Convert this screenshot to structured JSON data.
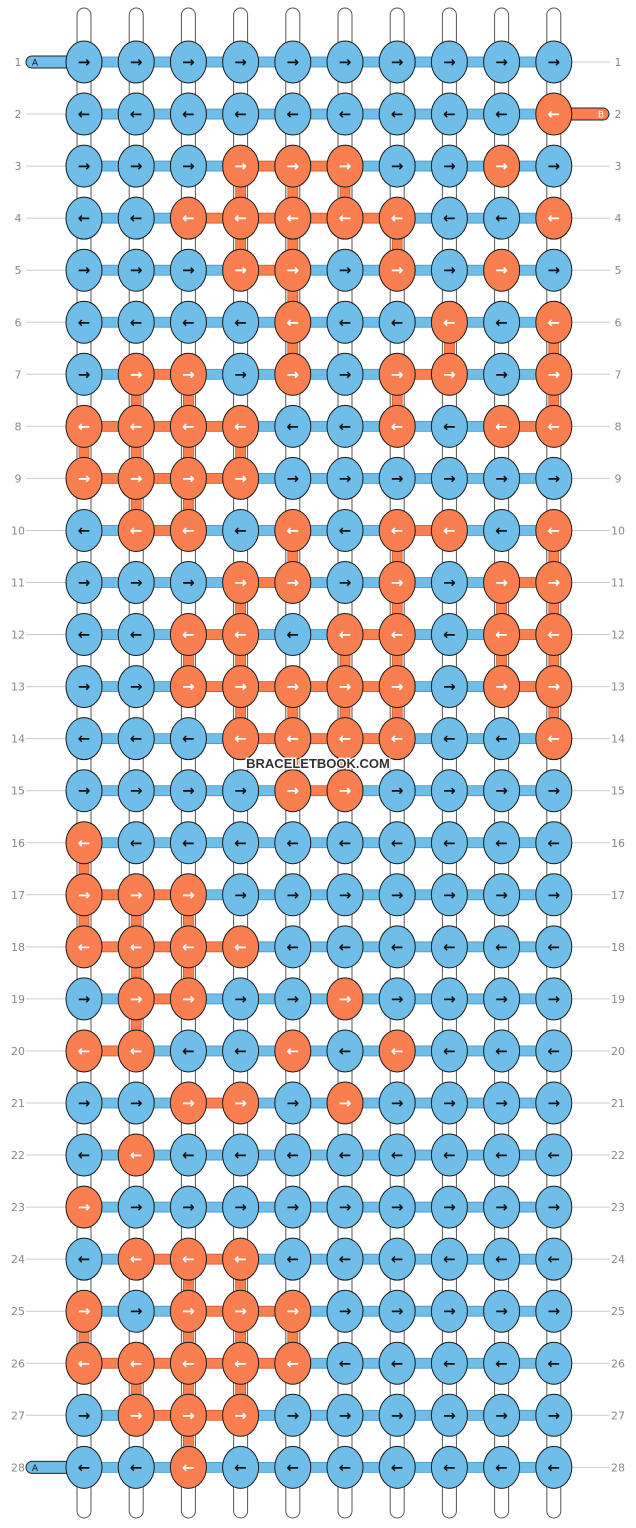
{
  "pattern": {
    "watermark": "BRACELETBOOK.COM",
    "colors": {
      "A": "#6fbde9",
      "B": "#f97f51"
    },
    "colors_names": {
      "A": "A",
      "B": "B"
    },
    "arrow_glyphs": {
      "R": "→",
      "L": "←"
    },
    "rows": [
      {
        "label": "1",
        "dir": "RRRRRRRRRR",
        "col": "AAAAAAAAAA"
      },
      {
        "label": "2",
        "dir": "LLLLLLLLLL",
        "col": "AAAAAAAAAB"
      },
      {
        "label": "3",
        "dir": "RRRRRRRRRR",
        "col": "AAABBBAABA"
      },
      {
        "label": "4",
        "dir": "LLLLLLLLLL",
        "col": "AABBBBBAAB"
      },
      {
        "label": "5",
        "dir": "RRRRRRRRRR",
        "col": "AAABBABABA"
      },
      {
        "label": "6",
        "dir": "LLLLLLLLLL",
        "col": "AAAABAABAB"
      },
      {
        "label": "7",
        "dir": "RRRRRRRRRR",
        "col": "ABBABABBAB"
      },
      {
        "label": "8",
        "dir": "LLLLLLLLLL",
        "col": "BBBBAABABB"
      },
      {
        "label": "9",
        "dir": "RRRRRRRRRR",
        "col": "BBBBAAAAAA"
      },
      {
        "label": "10",
        "dir": "LLLLLLLLLL",
        "col": "ABBABABBAB"
      },
      {
        "label": "11",
        "dir": "RRRRRRRRRR",
        "col": "AAABBABABB"
      },
      {
        "label": "12",
        "dir": "LLLLLLLLLL",
        "col": "AABBABBABB"
      },
      {
        "label": "13",
        "dir": "RRRRRRRRRR",
        "col": "AABBBBBABB"
      },
      {
        "label": "14",
        "dir": "LLLLLLLLLL",
        "col": "AAABBBBAAB"
      },
      {
        "label": "15",
        "dir": "RRRRRRRRRR",
        "col": "AAAABBAAAA"
      },
      {
        "label": "16",
        "dir": "LLLLLLLLLL",
        "col": "BAAAAAAAAA"
      },
      {
        "label": "17",
        "dir": "RRRRRRRRRR",
        "col": "BBBAAAAAAA"
      },
      {
        "label": "18",
        "dir": "LLLLLLLLLL",
        "col": "BBBBAAAAAA"
      },
      {
        "label": "19",
        "dir": "RRRRRRRRRR",
        "col": "ABBAABAAAA"
      },
      {
        "label": "20",
        "dir": "LLLLLLLLLL",
        "col": "BBAABABAAA"
      },
      {
        "label": "21",
        "dir": "RRRRRRRRRR",
        "col": "AABBABAAAA"
      },
      {
        "label": "22",
        "dir": "LLLLLLLLLL",
        "col": "ABAAAAAAAA"
      },
      {
        "label": "23",
        "dir": "RRRRRRRRRR",
        "col": "BAAAAAAAAA"
      },
      {
        "label": "24",
        "dir": "LLLLLLLLLL",
        "col": "ABBBAAAAAA"
      },
      {
        "label": "25",
        "dir": "RRRRRRRRRR",
        "col": "BABBBAAAAA"
      },
      {
        "label": "26",
        "dir": "LLLLLLLLLL",
        "col": "BBBBBAAAAA"
      },
      {
        "label": "27",
        "dir": "RRRRRRRRRR",
        "col": "ABBBAAAAAA"
      },
      {
        "label": "28",
        "dir": "LLLLLLLLLL",
        "col": "AABAAAAAAA"
      }
    ],
    "end_labels": [
      {
        "row": "1",
        "side": "left",
        "text": "A",
        "color": "A"
      },
      {
        "row": "2",
        "side": "right",
        "text": "B",
        "color": "B"
      },
      {
        "row": "28",
        "side": "left",
        "text": "A",
        "color": "A"
      }
    ]
  }
}
